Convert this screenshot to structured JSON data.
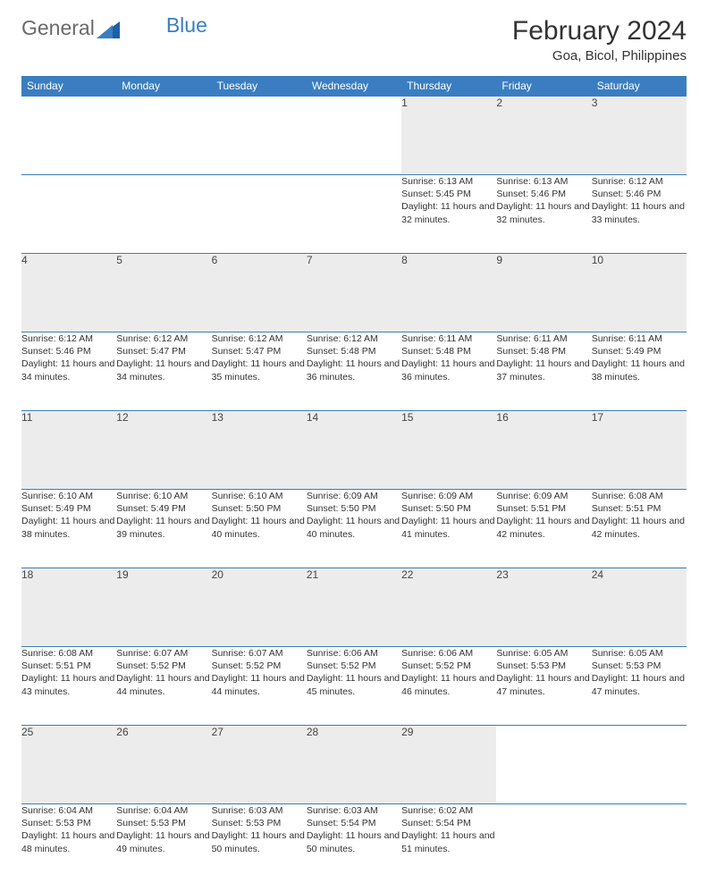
{
  "brand": {
    "name_gray": "General",
    "name_blue": "Blue"
  },
  "title": "February 2024",
  "location": "Goa, Bicol, Philippines",
  "colors": {
    "header_bg": "#3a7ec1",
    "daynum_bg": "#ececec",
    "text": "#333333",
    "rule": "#3a7ec1"
  },
  "weekdays": [
    "Sunday",
    "Monday",
    "Tuesday",
    "Wednesday",
    "Thursday",
    "Friday",
    "Saturday"
  ],
  "weeks": [
    [
      null,
      null,
      null,
      null,
      {
        "n": "1",
        "sr": "Sunrise: 6:13 AM",
        "ss": "Sunset: 5:45 PM",
        "dl": "Daylight: 11 hours and 32 minutes."
      },
      {
        "n": "2",
        "sr": "Sunrise: 6:13 AM",
        "ss": "Sunset: 5:46 PM",
        "dl": "Daylight: 11 hours and 32 minutes."
      },
      {
        "n": "3",
        "sr": "Sunrise: 6:12 AM",
        "ss": "Sunset: 5:46 PM",
        "dl": "Daylight: 11 hours and 33 minutes."
      }
    ],
    [
      {
        "n": "4",
        "sr": "Sunrise: 6:12 AM",
        "ss": "Sunset: 5:46 PM",
        "dl": "Daylight: 11 hours and 34 minutes."
      },
      {
        "n": "5",
        "sr": "Sunrise: 6:12 AM",
        "ss": "Sunset: 5:47 PM",
        "dl": "Daylight: 11 hours and 34 minutes."
      },
      {
        "n": "6",
        "sr": "Sunrise: 6:12 AM",
        "ss": "Sunset: 5:47 PM",
        "dl": "Daylight: 11 hours and 35 minutes."
      },
      {
        "n": "7",
        "sr": "Sunrise: 6:12 AM",
        "ss": "Sunset: 5:48 PM",
        "dl": "Daylight: 11 hours and 36 minutes."
      },
      {
        "n": "8",
        "sr": "Sunrise: 6:11 AM",
        "ss": "Sunset: 5:48 PM",
        "dl": "Daylight: 11 hours and 36 minutes."
      },
      {
        "n": "9",
        "sr": "Sunrise: 6:11 AM",
        "ss": "Sunset: 5:48 PM",
        "dl": "Daylight: 11 hours and 37 minutes."
      },
      {
        "n": "10",
        "sr": "Sunrise: 6:11 AM",
        "ss": "Sunset: 5:49 PM",
        "dl": "Daylight: 11 hours and 38 minutes."
      }
    ],
    [
      {
        "n": "11",
        "sr": "Sunrise: 6:10 AM",
        "ss": "Sunset: 5:49 PM",
        "dl": "Daylight: 11 hours and 38 minutes."
      },
      {
        "n": "12",
        "sr": "Sunrise: 6:10 AM",
        "ss": "Sunset: 5:49 PM",
        "dl": "Daylight: 11 hours and 39 minutes."
      },
      {
        "n": "13",
        "sr": "Sunrise: 6:10 AM",
        "ss": "Sunset: 5:50 PM",
        "dl": "Daylight: 11 hours and 40 minutes."
      },
      {
        "n": "14",
        "sr": "Sunrise: 6:09 AM",
        "ss": "Sunset: 5:50 PM",
        "dl": "Daylight: 11 hours and 40 minutes."
      },
      {
        "n": "15",
        "sr": "Sunrise: 6:09 AM",
        "ss": "Sunset: 5:50 PM",
        "dl": "Daylight: 11 hours and 41 minutes."
      },
      {
        "n": "16",
        "sr": "Sunrise: 6:09 AM",
        "ss": "Sunset: 5:51 PM",
        "dl": "Daylight: 11 hours and 42 minutes."
      },
      {
        "n": "17",
        "sr": "Sunrise: 6:08 AM",
        "ss": "Sunset: 5:51 PM",
        "dl": "Daylight: 11 hours and 42 minutes."
      }
    ],
    [
      {
        "n": "18",
        "sr": "Sunrise: 6:08 AM",
        "ss": "Sunset: 5:51 PM",
        "dl": "Daylight: 11 hours and 43 minutes."
      },
      {
        "n": "19",
        "sr": "Sunrise: 6:07 AM",
        "ss": "Sunset: 5:52 PM",
        "dl": "Daylight: 11 hours and 44 minutes."
      },
      {
        "n": "20",
        "sr": "Sunrise: 6:07 AM",
        "ss": "Sunset: 5:52 PM",
        "dl": "Daylight: 11 hours and 44 minutes."
      },
      {
        "n": "21",
        "sr": "Sunrise: 6:06 AM",
        "ss": "Sunset: 5:52 PM",
        "dl": "Daylight: 11 hours and 45 minutes."
      },
      {
        "n": "22",
        "sr": "Sunrise: 6:06 AM",
        "ss": "Sunset: 5:52 PM",
        "dl": "Daylight: 11 hours and 46 minutes."
      },
      {
        "n": "23",
        "sr": "Sunrise: 6:05 AM",
        "ss": "Sunset: 5:53 PM",
        "dl": "Daylight: 11 hours and 47 minutes."
      },
      {
        "n": "24",
        "sr": "Sunrise: 6:05 AM",
        "ss": "Sunset: 5:53 PM",
        "dl": "Daylight: 11 hours and 47 minutes."
      }
    ],
    [
      {
        "n": "25",
        "sr": "Sunrise: 6:04 AM",
        "ss": "Sunset: 5:53 PM",
        "dl": "Daylight: 11 hours and 48 minutes."
      },
      {
        "n": "26",
        "sr": "Sunrise: 6:04 AM",
        "ss": "Sunset: 5:53 PM",
        "dl": "Daylight: 11 hours and 49 minutes."
      },
      {
        "n": "27",
        "sr": "Sunrise: 6:03 AM",
        "ss": "Sunset: 5:53 PM",
        "dl": "Daylight: 11 hours and 50 minutes."
      },
      {
        "n": "28",
        "sr": "Sunrise: 6:03 AM",
        "ss": "Sunset: 5:54 PM",
        "dl": "Daylight: 11 hours and 50 minutes."
      },
      {
        "n": "29",
        "sr": "Sunrise: 6:02 AM",
        "ss": "Sunset: 5:54 PM",
        "dl": "Daylight: 11 hours and 51 minutes."
      },
      null,
      null
    ]
  ]
}
